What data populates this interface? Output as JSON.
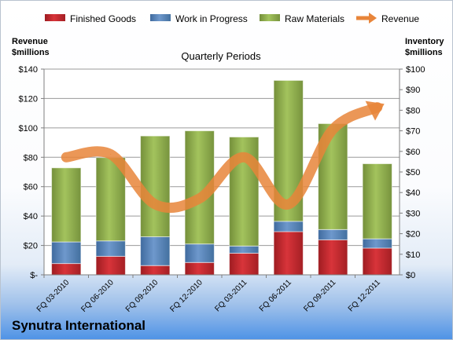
{
  "chart_data": {
    "type": "bar",
    "subtitle": "Quarterly Periods",
    "company": "Synutra International",
    "categories": [
      "FQ 03-2010",
      "FQ 06-2010",
      "FQ 09-2010",
      "FQ 12-2010",
      "FQ 03-2011",
      "FQ 06-2011",
      "FQ 09-2011",
      "FQ 12-2011"
    ],
    "left_axis": {
      "title_line1": "Revenue",
      "title_line2": "$millions",
      "ylim": [
        0,
        140
      ],
      "ticks": [
        "$-",
        "$20",
        "$40",
        "$60",
        "$80",
        "$100",
        "$120",
        "$140"
      ]
    },
    "right_axis": {
      "title_line1": "Inventory",
      "title_line2": "$millions",
      "ylim": [
        0,
        100
      ],
      "ticks": [
        "$0",
        "$10",
        "$20",
        "$30",
        "$40",
        "$50",
        "$60",
        "$70",
        "$80",
        "$90",
        "$100"
      ]
    },
    "stacked": true,
    "series": [
      {
        "name": "Finished Goods",
        "axis": "right",
        "type": "bar",
        "color": "#c0272d",
        "values": [
          5.5,
          9,
          4.5,
          6,
          10.5,
          21,
          17,
          13
        ]
      },
      {
        "name": "Work in Progress",
        "axis": "right",
        "type": "bar",
        "color": "#4f81bd",
        "values": [
          10.5,
          7.5,
          14,
          9,
          3.5,
          5,
          5,
          4.5
        ]
      },
      {
        "name": "Raw Materials",
        "axis": "right",
        "type": "bar",
        "color": "#8fb04a",
        "values": [
          36,
          40.5,
          49,
          55,
          53,
          68.5,
          51.5,
          36.5
        ]
      },
      {
        "name": "Revenue",
        "axis": "left",
        "type": "line",
        "color": "#e8853a",
        "values": [
          80,
          82,
          48,
          52,
          80,
          48,
          99,
          114
        ]
      }
    ],
    "grid": true,
    "legend_position": "top"
  }
}
